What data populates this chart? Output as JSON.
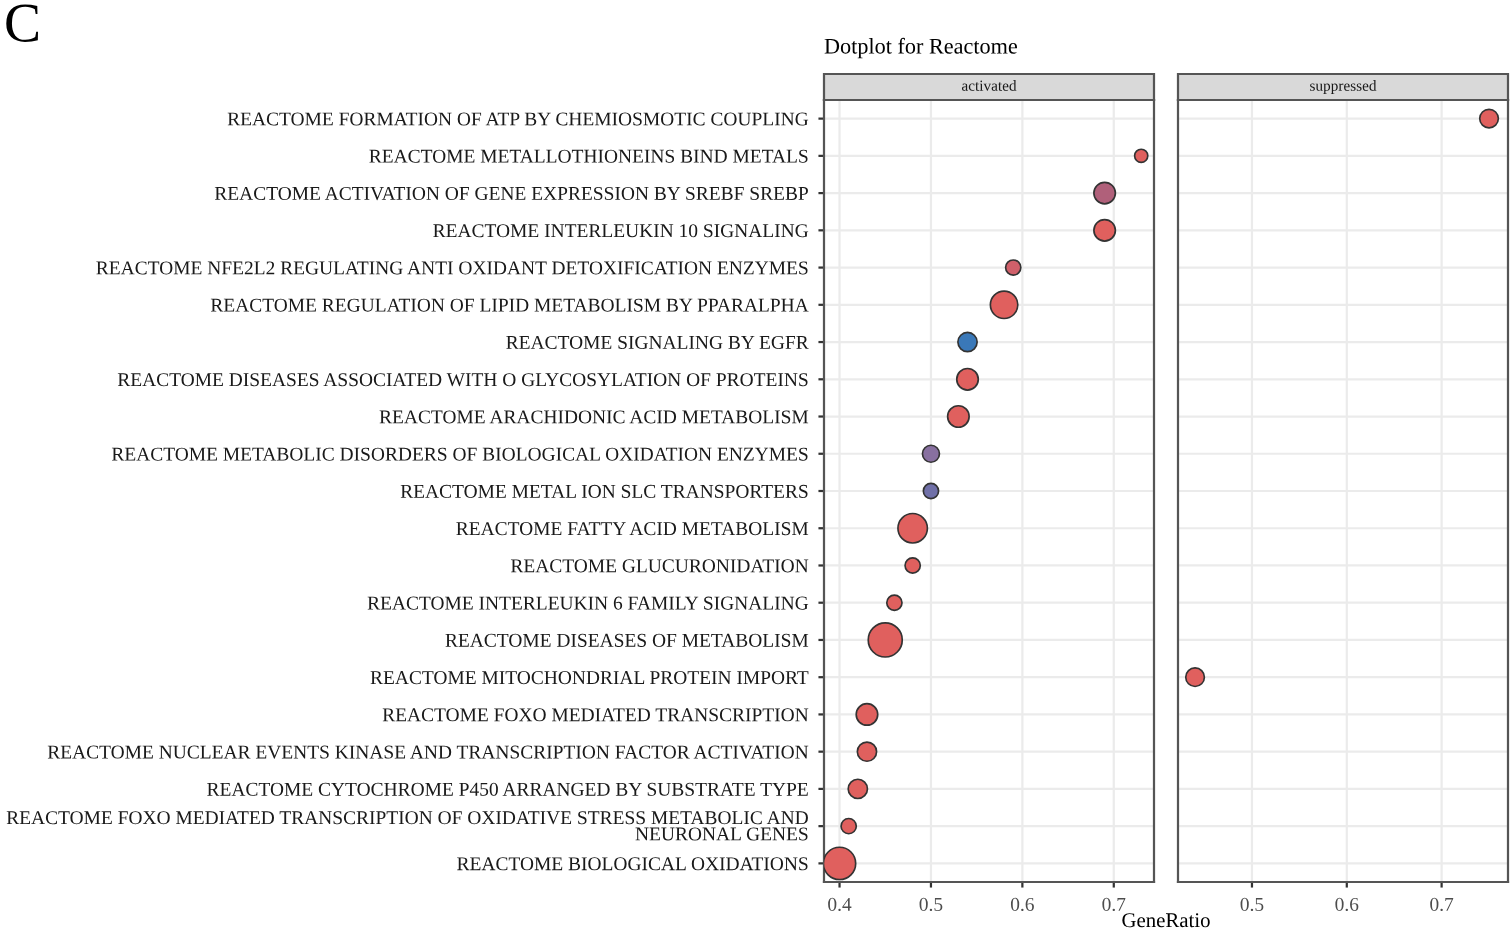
{
  "chart_data": [
    {
      "type": "bubble",
      "orientation": "horizontal",
      "title": "Dotplot for Reactome",
      "subtitle": "activated",
      "xlabel": "GeneRatio",
      "annotations": [
        "C"
      ],
      "categories": [
        "REACTOME FORMATION OF ATP BY CHEMIOSMOTIC COUPLING",
        "REACTOME METALLOTHIONEINS BIND METALS",
        "REACTOME ACTIVATION OF GENE EXPRESSION BY SREBF SREBP",
        "REACTOME INTERLEUKIN 10 SIGNALING",
        "REACTOME NFE2L2 REGULATING ANTI OXIDANT DETOXIFICATION ENZYMES",
        "REACTOME REGULATION OF LIPID METABOLISM BY PPARALPHA",
        "REACTOME SIGNALING BY EGFR",
        "REACTOME DISEASES ASSOCIATED WITH O GLYCOSYLATION OF PROTEINS",
        "REACTOME ARACHIDONIC ACID METABOLISM",
        "REACTOME METABOLIC DISORDERS OF BIOLOGICAL OXIDATION ENZYMES",
        "REACTOME METAL ION SLC TRANSPORTERS",
        "REACTOME FATTY ACID METABOLISM",
        "REACTOME GLUCURONIDATION",
        "REACTOME INTERLEUKIN 6 FAMILY SIGNALING",
        "REACTOME DISEASES OF METABOLISM",
        "REACTOME MITOCHONDRIAL PROTEIN IMPORT",
        "REACTOME FOXO MEDIATED TRANSCRIPTION",
        "REACTOME NUCLEAR EVENTS KINASE AND TRANSCRIPTION FACTOR ACTIVATION",
        "REACTOME CYTOCHROME P450 ARRANGED BY SUBSTRATE TYPE",
        "REACTOME FOXO MEDIATED TRANSCRIPTION OF OXIDATIVE STRESS METABOLIC AND\nNEURONAL GENES",
        "REACTOME BIOLOGICAL OXIDATIONS"
      ],
      "values": [
        null,
        0.73,
        0.69,
        0.69,
        0.59,
        0.58,
        0.54,
        0.54,
        0.53,
        0.5,
        0.5,
        0.48,
        0.48,
        0.46,
        0.45,
        null,
        0.43,
        0.43,
        0.42,
        0.41,
        0.4
      ],
      "sizes": [
        null,
        0.15,
        0.4,
        0.4,
        0.2,
        0.65,
        0.32,
        0.4,
        0.4,
        0.25,
        0.2,
        0.75,
        0.2,
        0.2,
        1,
        null,
        0.4,
        0.32,
        0.32,
        0.2,
        0.9
      ],
      "colors": [
        null,
        "#e0605e",
        "#b0607a",
        "#e0605e",
        "#d0606a",
        "#e0605e",
        "#3a78b8",
        "#e0605e",
        "#e0605e",
        "#8870a0",
        "#7070a8",
        "#e0605e",
        "#e0605e",
        "#e0605e",
        "#e0605e",
        null,
        "#e0605e",
        "#e0605e",
        "#e0605e",
        "#e0605e",
        "#e0605e"
      ],
      "xlim": [
        0.383,
        0.744
      ],
      "xticks": [
        0.4,
        0.5,
        0.6,
        0.7
      ],
      "grid": true,
      "legend": false
    },
    {
      "type": "scatter",
      "orientation": "horizontal",
      "subtitle": "suppressed",
      "tick_labels": "x",
      "values": [
        0.75,
        null,
        null,
        null,
        null,
        null,
        null,
        null,
        null,
        null,
        null,
        null,
        null,
        null,
        null,
        0.44,
        null,
        null,
        null,
        null,
        null
      ],
      "colors": [
        "#e0605e",
        null,
        null,
        null,
        null,
        null,
        null,
        null,
        null,
        null,
        null,
        null,
        null,
        null,
        null,
        "#e0605e",
        null,
        null,
        null,
        null,
        null
      ],
      "xlim": [
        0.422,
        0.77
      ],
      "xticks": [
        0.5,
        0.6,
        0.7
      ],
      "grid": true,
      "legend": false
    }
  ]
}
